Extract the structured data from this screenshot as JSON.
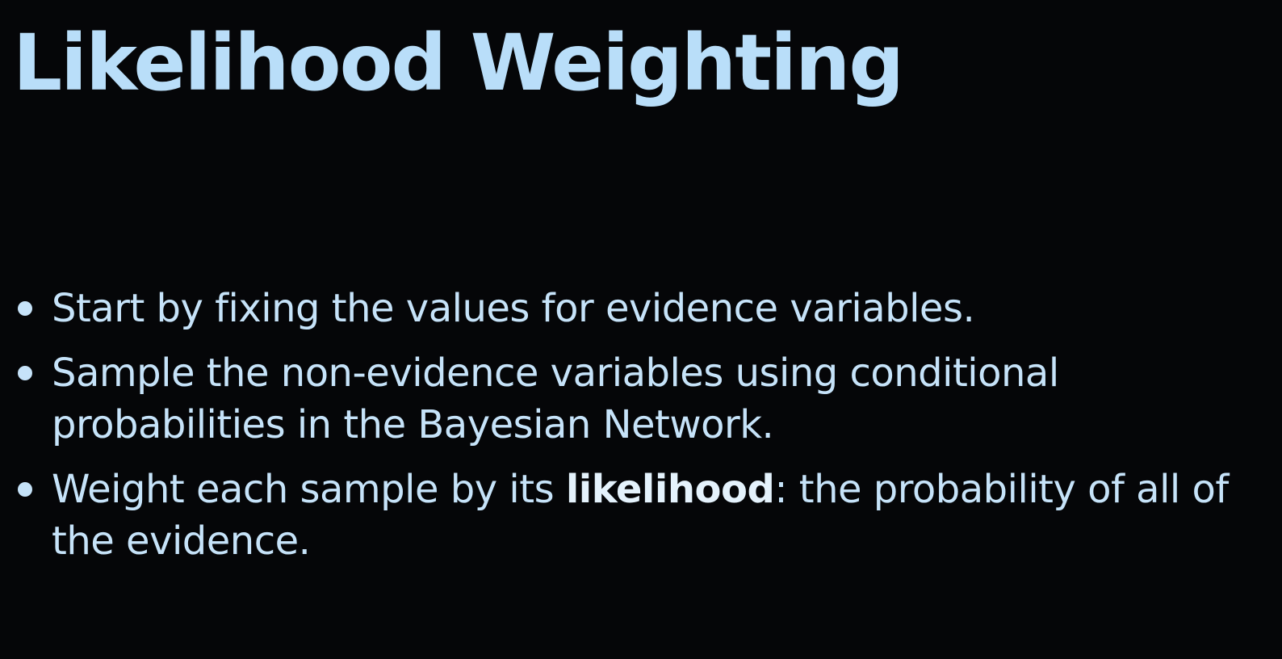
{
  "slide": {
    "title": "Likelihood Weighting",
    "bullets": [
      {
        "text": "Start by fixing the values for evidence variables."
      },
      {
        "text": "Sample the non-evidence variables using conditional probabilities in the Bayesian Network."
      },
      {
        "before": "Weight each sample by its ",
        "emphasis": "likelihood",
        "after": ": the probability of all of the evidence."
      }
    ]
  },
  "colors": {
    "background": "#050608",
    "title": "#b9def9",
    "body_text": "#c6e3f9"
  }
}
